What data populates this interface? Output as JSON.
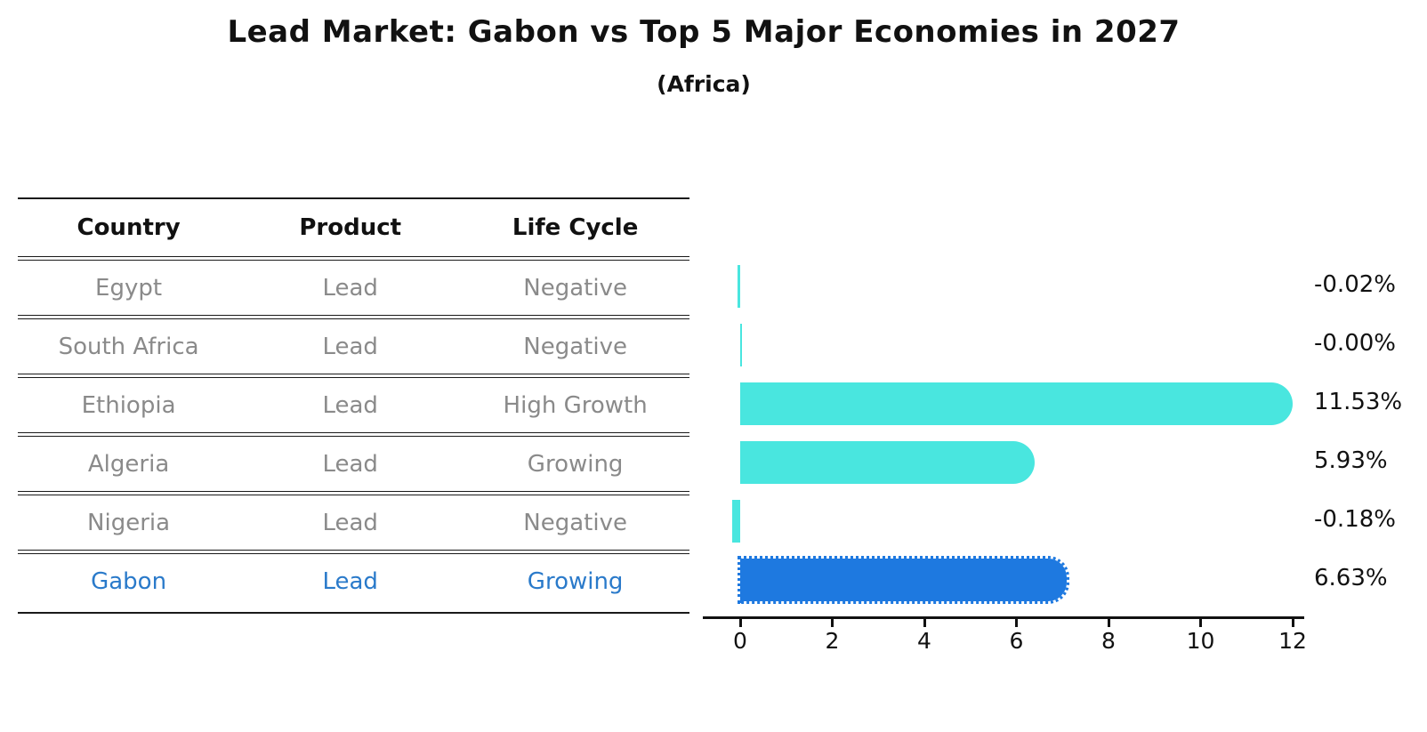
{
  "title": "Lead Market: Gabon vs Top 5 Major Economies in 2027",
  "subtitle": "(Africa)",
  "table": {
    "headers": [
      "Country",
      "Product",
      "Life Cycle"
    ],
    "rows": [
      {
        "country": "Egypt",
        "product": "Lead",
        "life_cycle": "Negative",
        "highlighted": false
      },
      {
        "country": "South Africa",
        "product": "Lead",
        "life_cycle": "Negative",
        "highlighted": false
      },
      {
        "country": "Ethiopia",
        "product": "Lead",
        "life_cycle": "High Growth",
        "highlighted": false
      },
      {
        "country": "Algeria",
        "product": "Lead",
        "life_cycle": "Growing",
        "highlighted": false
      },
      {
        "country": "Nigeria",
        "product": "Lead",
        "life_cycle": "Negative",
        "highlighted": false
      },
      {
        "country": "Gabon",
        "product": "Lead",
        "life_cycle": "Growing",
        "highlighted": true
      }
    ]
  },
  "chart_data": {
    "type": "bar",
    "orientation": "horizontal",
    "categories": [
      "Egypt",
      "South Africa",
      "Ethiopia",
      "Algeria",
      "Nigeria",
      "Gabon"
    ],
    "values": [
      -0.02,
      -0.0,
      11.53,
      5.93,
      -0.18,
      6.63
    ],
    "value_labels": [
      "-0.02%",
      "-0.00%",
      "11.53%",
      "5.93%",
      "-0.18%",
      "6.63%"
    ],
    "x_ticks": [
      0,
      2,
      4,
      6,
      8,
      10,
      12
    ],
    "xlim": [
      -0.8,
      12.3
    ],
    "grid": false,
    "legend": "none",
    "bar_color": "#49e6df",
    "highlight_index": 5,
    "highlight_color": "#1e79e0",
    "highlight_text_color": "#2a7aca",
    "text_color_muted": "#8a8a8a",
    "line_color": "#1a1a1a"
  }
}
